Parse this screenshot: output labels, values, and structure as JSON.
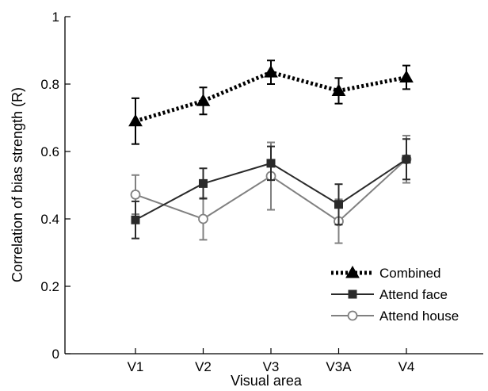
{
  "chart_data": {
    "type": "line",
    "title": "",
    "xlabel": "Visual area",
    "ylabel": "Correlation of bias strength  (R)",
    "categories": [
      "V1",
      "V2",
      "V3",
      "V3A",
      "V4"
    ],
    "ylim": [
      0,
      1
    ],
    "yticks": [
      0,
      0.2,
      0.4,
      0.6,
      0.8,
      1
    ],
    "ytick_labels": [
      "0",
      "0.2",
      "0.4",
      "0.6",
      "0.8",
      "1"
    ],
    "grid": false,
    "legend_position": "bottom-right",
    "series": [
      {
        "name": "Combined",
        "values": [
          0.69,
          0.75,
          0.835,
          0.78,
          0.82
        ],
        "error": [
          0.068,
          0.04,
          0.035,
          0.038,
          0.035
        ],
        "color": "#000000",
        "line_style": "dotted",
        "marker": "triangle",
        "marker_fill": "#000000"
      },
      {
        "name": "Attend face",
        "values": [
          0.397,
          0.505,
          0.565,
          0.443,
          0.577
        ],
        "error": [
          0.055,
          0.045,
          0.05,
          0.06,
          0.06
        ],
        "color": "#2a2a2a",
        "line_style": "solid",
        "marker": "square",
        "marker_fill": "#2a2a2a"
      },
      {
        "name": "Attend house",
        "values": [
          0.472,
          0.4,
          0.527,
          0.393,
          0.577
        ],
        "error": [
          0.058,
          0.062,
          0.1,
          0.065,
          0.07
        ],
        "color": "#808080",
        "line_style": "solid",
        "marker": "circle",
        "marker_fill": "#ffffff"
      }
    ]
  }
}
